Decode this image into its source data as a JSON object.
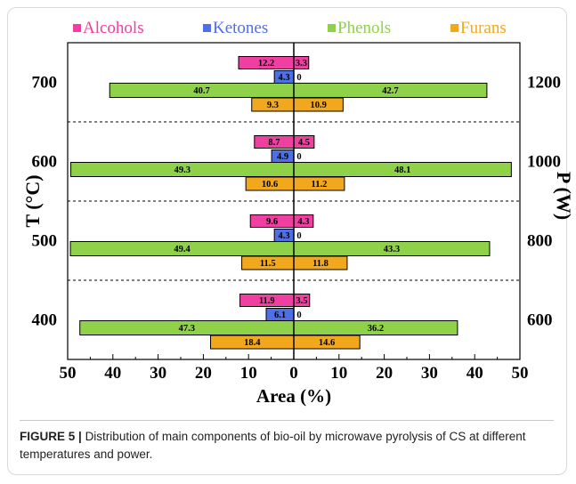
{
  "chart_data": {
    "type": "bar",
    "orientation": "horizontal-butterfly",
    "title": "",
    "xlabel": "Area (%)",
    "ylabel_left": "T (°C)",
    "ylabel_right": "P (W)",
    "xlim_left": [
      50,
      0
    ],
    "xlim_right": [
      0,
      50
    ],
    "x_ticks": [
      "50",
      "40",
      "30",
      "20",
      "10",
      "0",
      "10",
      "20",
      "30",
      "40",
      "50"
    ],
    "left_categories": [
      "700",
      "600",
      "500",
      "400"
    ],
    "right_categories": [
      "1200",
      "1000",
      "800",
      "600"
    ],
    "legend_position": "top",
    "series": [
      {
        "name": "Alcohols",
        "color": "#ef3fa0",
        "temperature_values": [
          12.2,
          8.7,
          9.6,
          11.9
        ],
        "power_values": [
          3.3,
          4.5,
          4.3,
          3.5
        ]
      },
      {
        "name": "Ketones",
        "color": "#4f6fe6",
        "temperature_values": [
          4.3,
          4.9,
          4.3,
          6.1
        ],
        "power_values": [
          0,
          0,
          0,
          0
        ]
      },
      {
        "name": "Phenols",
        "color": "#8fd24a",
        "temperature_values": [
          40.7,
          49.3,
          49.4,
          47.3
        ],
        "power_values": [
          42.7,
          48.1,
          43.3,
          36.2
        ]
      },
      {
        "name": "Furans",
        "color": "#f2a81d",
        "temperature_values": [
          9.3,
          10.6,
          11.5,
          18.4
        ],
        "power_values": [
          10.9,
          11.2,
          11.8,
          14.6
        ]
      }
    ],
    "grid": false
  },
  "caption": {
    "label": "FIGURE 5 |",
    "text": "Distribution of main components of bio-oil by microwave pyrolysis of CS at different temperatures and power."
  }
}
